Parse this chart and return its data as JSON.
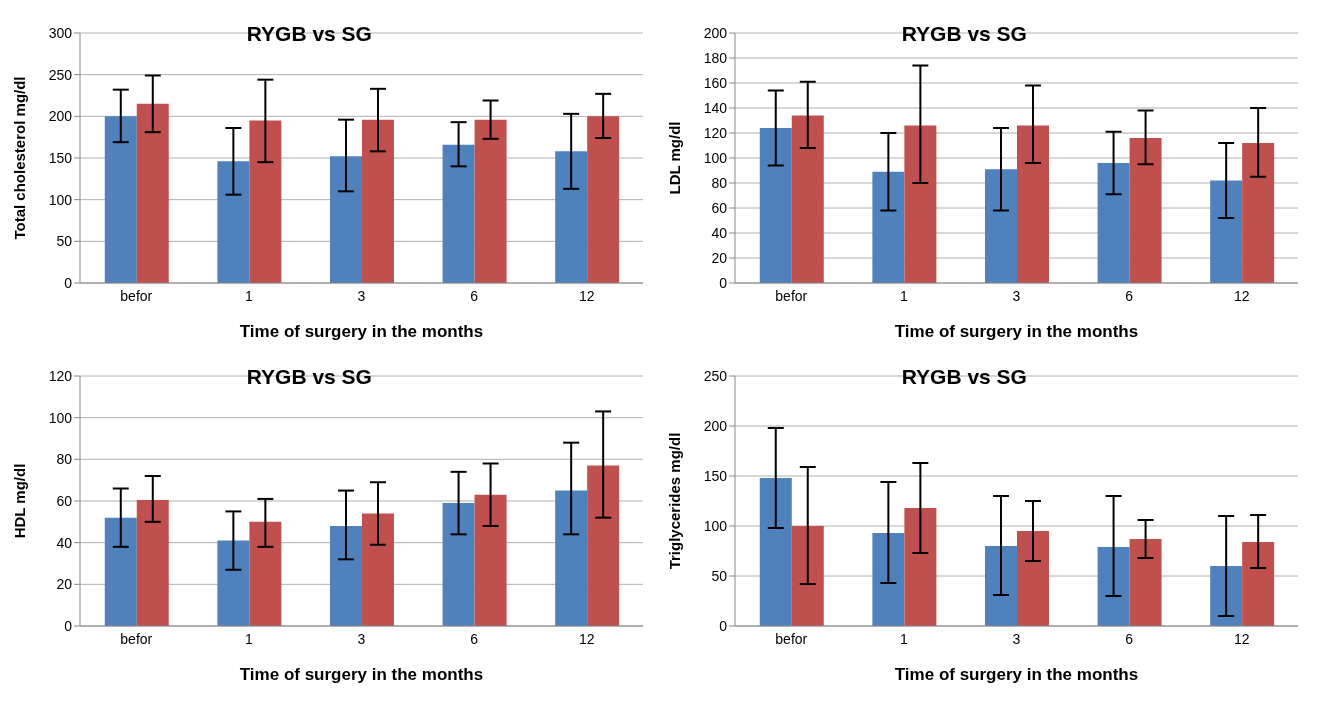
{
  "chart_data": [
    {
      "type": "bar",
      "title": "RYGB vs SG",
      "xlabel": "Time of surgery in the months",
      "ylabel": "Total cholesterol mg/dl",
      "categories": [
        "befor",
        "1",
        "3",
        "6",
        "12"
      ],
      "ylim": [
        0,
        300
      ],
      "yticks": [
        0,
        50,
        100,
        150,
        200,
        250,
        300
      ],
      "grid": "y",
      "legend": false,
      "series": [
        {
          "color": "#4f81bd",
          "values": [
            200,
            146,
            152,
            166,
            158
          ],
          "errors": [
            [
              169,
              232
            ],
            [
              106,
              186
            ],
            [
              110,
              196
            ],
            [
              140,
              193
            ],
            [
              113,
              203
            ]
          ]
        },
        {
          "color": "#c0504d",
          "values": [
            215,
            195,
            196,
            196,
            200
          ],
          "errors": [
            [
              181,
              249
            ],
            [
              145,
              244
            ],
            [
              158,
              233
            ],
            [
              173,
              219
            ],
            [
              174,
              227
            ]
          ]
        }
      ]
    },
    {
      "type": "bar",
      "title": "RYGB vs SG",
      "xlabel": "Time of surgery in the months",
      "ylabel": "LDL mg/dl",
      "categories": [
        "befor",
        "1",
        "3",
        "6",
        "12"
      ],
      "ylim": [
        0,
        200
      ],
      "yticks": [
        0,
        20,
        40,
        60,
        80,
        100,
        120,
        140,
        160,
        180,
        200
      ],
      "grid": "y",
      "legend": false,
      "series": [
        {
          "color": "#4f81bd",
          "values": [
            124,
            89,
            91,
            96,
            82
          ],
          "errors": [
            [
              94,
              154
            ],
            [
              58,
              120
            ],
            [
              58,
              124
            ],
            [
              71,
              121
            ],
            [
              52,
              112
            ]
          ]
        },
        {
          "color": "#c0504d",
          "values": [
            134,
            126,
            126,
            116,
            112
          ],
          "errors": [
            [
              108,
              161
            ],
            [
              80,
              174
            ],
            [
              96,
              158
            ],
            [
              95,
              138
            ],
            [
              85,
              140
            ]
          ]
        }
      ]
    },
    {
      "type": "bar",
      "title": "RYGB vs SG",
      "xlabel": "Time of surgery in the months",
      "ylabel": "HDL mg/dl",
      "categories": [
        "befor",
        "1",
        "3",
        "6",
        "12"
      ],
      "ylim": [
        0,
        120
      ],
      "yticks": [
        0,
        20,
        40,
        60,
        80,
        100,
        120
      ],
      "grid": "y",
      "legend": false,
      "series": [
        {
          "color": "#4f81bd",
          "values": [
            52,
            41,
            48,
            59,
            65
          ],
          "errors": [
            [
              38,
              66
            ],
            [
              27,
              55
            ],
            [
              32,
              65
            ],
            [
              44,
              74
            ],
            [
              44,
              88
            ]
          ]
        },
        {
          "color": "#c0504d",
          "values": [
            60.5,
            50,
            54,
            63,
            77
          ],
          "errors": [
            [
              50,
              72
            ],
            [
              38,
              61
            ],
            [
              39,
              69
            ],
            [
              48,
              78
            ],
            [
              52,
              103
            ]
          ]
        }
      ]
    },
    {
      "type": "bar",
      "title": "RYGB vs SG",
      "xlabel": "Time of surgery in the months",
      "ylabel": "Triglycerides mg/dl",
      "categories": [
        "befor",
        "1",
        "3",
        "6",
        "12"
      ],
      "ylim": [
        0,
        250
      ],
      "yticks": [
        0,
        50,
        100,
        150,
        200,
        250
      ],
      "grid": "y",
      "legend": false,
      "series": [
        {
          "color": "#4f81bd",
          "values": [
            148,
            93,
            80,
            79,
            60
          ],
          "errors": [
            [
              98,
              198
            ],
            [
              43,
              144
            ],
            [
              31,
              130
            ],
            [
              30,
              130
            ],
            [
              10,
              110
            ]
          ]
        },
        {
          "color": "#c0504d",
          "values": [
            100,
            118,
            95,
            87,
            84
          ],
          "errors": [
            [
              42,
              159
            ],
            [
              73,
              163
            ],
            [
              65,
              125
            ],
            [
              68,
              106
            ],
            [
              58,
              111
            ]
          ]
        }
      ]
    }
  ]
}
